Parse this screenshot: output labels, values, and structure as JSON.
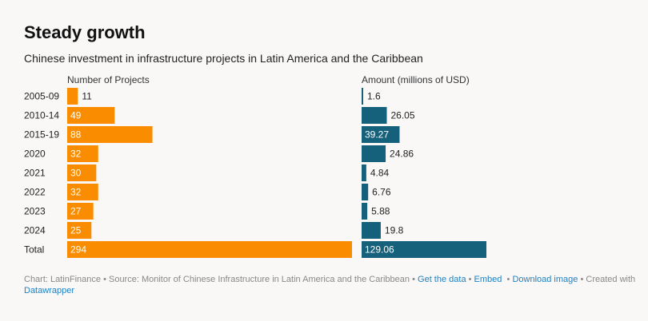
{
  "title": "Steady growth",
  "subtitle": "Chinese investment in infrastructure projects in Latin America and the Caribbean",
  "chart_data": [
    {
      "type": "bar",
      "orientation": "horizontal",
      "title": "Number of Projects",
      "categories": [
        "2005-09",
        "2010-14",
        "2015-19",
        "2020",
        "2021",
        "2022",
        "2023",
        "2024",
        "Total"
      ],
      "values": [
        11,
        49,
        88,
        32,
        30,
        32,
        27,
        25,
        294
      ],
      "labels": [
        "11",
        "49",
        "88",
        "32",
        "30",
        "32",
        "27",
        "25",
        "294"
      ],
      "color": "#fa8c00"
    },
    {
      "type": "bar",
      "orientation": "horizontal",
      "title": "Amount (millions of USD)",
      "categories": [
        "2005-09",
        "2010-14",
        "2015-19",
        "2020",
        "2021",
        "2022",
        "2023",
        "2024",
        "Total"
      ],
      "values": [
        1.6,
        26.05,
        39.27,
        24.86,
        4.84,
        6.76,
        5.88,
        19.8,
        129.06
      ],
      "labels": [
        "1.6",
        "26.05",
        "39.27",
        "24.86",
        "4.84",
        "6.76",
        "5.88",
        "19.8",
        "129.06"
      ],
      "color": "#15607a"
    }
  ],
  "footer": {
    "credit": "Chart: LatinFinance",
    "source": "Source: Monitor of Chinese Infrastructure in Latin America and the Caribbean",
    "get_data": "Get the data",
    "embed": "Embed",
    "download": "Download image",
    "created_with": "Created with",
    "datawrapper": "Datawrapper",
    "sep": "•"
  }
}
